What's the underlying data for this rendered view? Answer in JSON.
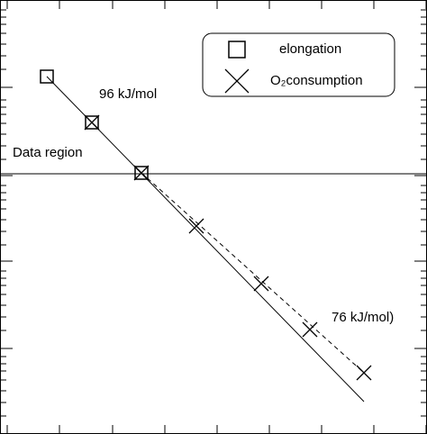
{
  "chart_data": {
    "type": "scatter",
    "xlim": [
      0,
      474
    ],
    "ylim": [
      0,
      482
    ],
    "xticks": [
      8,
      66,
      125,
      183,
      241,
      299,
      357,
      415,
      473
    ],
    "yticks": [
      95,
      192,
      287,
      385
    ],
    "minor_yticks": [
      20,
      35,
      48,
      60,
      70,
      78,
      86,
      115,
      130,
      143,
      155,
      165,
      173,
      181,
      210,
      225,
      238,
      250,
      260,
      268,
      276,
      305,
      320,
      333,
      345,
      355,
      363,
      371,
      405,
      420,
      433,
      445,
      455,
      463,
      471
    ],
    "reference_y": 289,
    "series": [
      {
        "name": "elongation",
        "marker": "square",
        "color": "#000000",
        "x": [
          52,
          102,
          157
        ],
        "values": [
          397,
          346,
          290
        ]
      },
      {
        "name": "O₂consumption",
        "marker": "cross",
        "color": "#000000",
        "x": [
          102,
          157,
          218,
          290,
          344,
          404
        ],
        "values": [
          346,
          290,
          231,
          167,
          116,
          68
        ]
      }
    ],
    "fits": [
      {
        "style": "solid",
        "x": [
          52,
          404
        ],
        "values": [
          397,
          36
        ]
      },
      {
        "style": "dashed",
        "x": [
          157,
          404
        ],
        "values": [
          290,
          68
        ]
      }
    ],
    "annotations": [
      {
        "text": "96 kJ/mol",
        "x": 110,
        "y": 377
      },
      {
        "text": "Data region",
        "x": 14,
        "y": 312
      },
      {
        "text": "76 kJ/mol)",
        "x": 368,
        "y": 129
      }
    ]
  }
}
